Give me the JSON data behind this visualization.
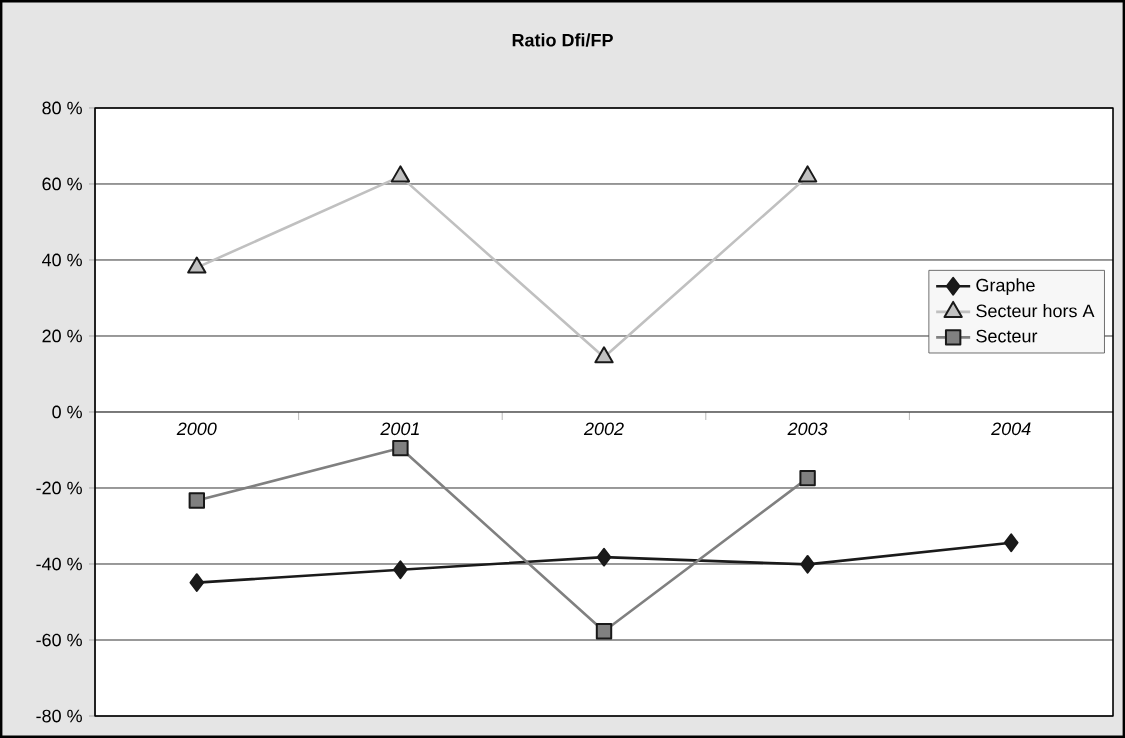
{
  "chart_data": {
    "type": "line",
    "title": "Ratio Dfi/FP",
    "categories": [
      "2000",
      "2001",
      "2002",
      "2003",
      "2004"
    ],
    "series": [
      {
        "name": "Graphe",
        "color": "#1a1a1a",
        "marker": "diamond",
        "values": [
          -44.9,
          -41.5,
          -38.2,
          -40.1,
          -34.4
        ]
      },
      {
        "name": "Secteur hors A",
        "color": "#c0c0c0",
        "marker": "triangle",
        "values": [
          38,
          62,
          14.4,
          62,
          null
        ]
      },
      {
        "name": "Secteur",
        "color": "#808080",
        "marker": "square",
        "values": [
          -23.3,
          -9.5,
          -57.7,
          -17.4,
          null
        ]
      }
    ],
    "ylim": [
      -80,
      80
    ],
    "yticks": [
      {
        "value": -80,
        "label": "-80 %"
      },
      {
        "value": -60,
        "label": "-60 %"
      },
      {
        "value": -40,
        "label": "-40 %"
      },
      {
        "value": -20,
        "label": "-20 %"
      },
      {
        "value": 0,
        "label": "0 %"
      },
      {
        "value": 20,
        "label": "20 %"
      },
      {
        "value": 40,
        "label": "40 %"
      },
      {
        "value": 60,
        "label": "60 %"
      },
      {
        "value": 80,
        "label": "80 %"
      }
    ],
    "grid": "y",
    "legend": "right",
    "line_style": "solid"
  }
}
